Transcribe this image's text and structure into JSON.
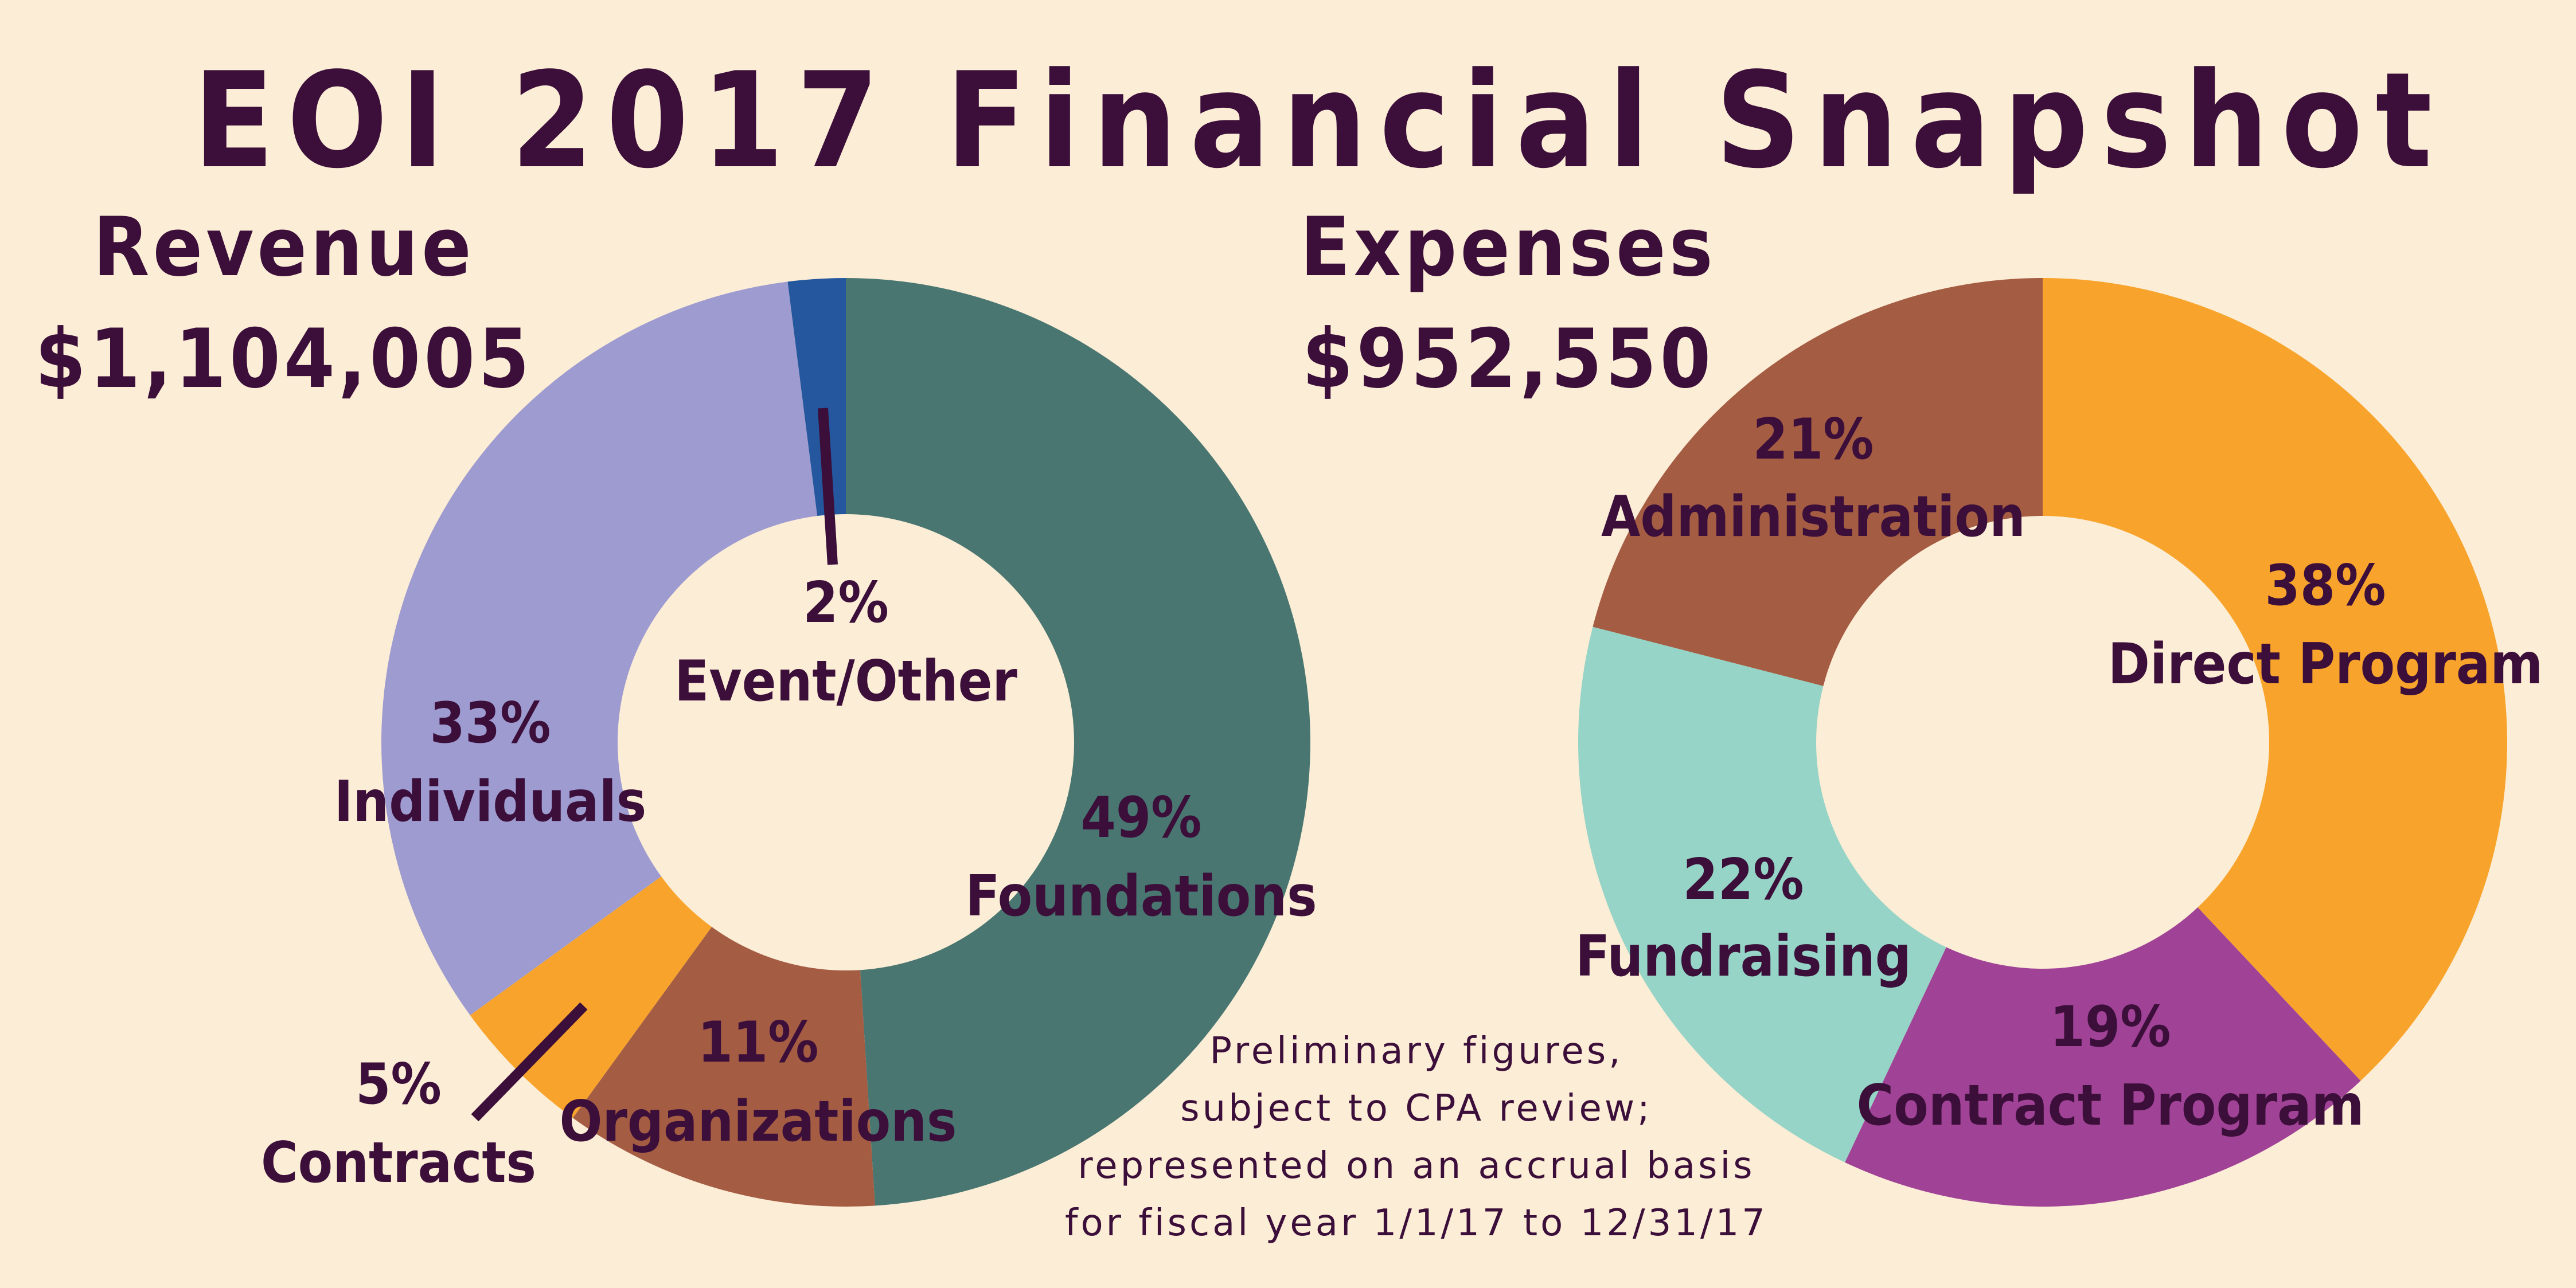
{
  "colors": {
    "background": "#fcedd6",
    "text": "#3b0f3a",
    "hole": "#fcedd6"
  },
  "title": "EOI 2017 Financial Snapshot",
  "note_lines": [
    "Preliminary figures,",
    "subject to CPA review;",
    "represented on an accrual basis",
    "for fiscal year 1/1/17 to 12/31/17"
  ],
  "chart_data": [
    {
      "type": "pie",
      "donut": true,
      "title": "Revenue",
      "subtitle": "$1,104,005",
      "slices": [
        {
          "label": "Foundations",
          "value": 49,
          "value_label": "49%",
          "color": "#497670"
        },
        {
          "label": "Organizations",
          "value": 11,
          "value_label": "11%",
          "color": "#a45c43"
        },
        {
          "label": "Contracts",
          "value": 5,
          "value_label": "5%",
          "color": "#f8a42c"
        },
        {
          "label": "Individuals",
          "value": 33,
          "value_label": "33%",
          "color": "#9e9bd0"
        },
        {
          "label": "Event/Other",
          "value": 2,
          "value_label": "2%",
          "color": "#25579e"
        }
      ]
    },
    {
      "type": "pie",
      "donut": true,
      "title": "Expenses",
      "subtitle": "$952,550",
      "slices": [
        {
          "label": "Direct Program",
          "value": 38,
          "value_label": "38%",
          "color": "#f8a42c"
        },
        {
          "label": "Contract Program",
          "value": 19,
          "value_label": "19%",
          "color": "#a04296"
        },
        {
          "label": "Fundraising",
          "value": 22,
          "value_label": "22%",
          "color": "#95d4c6"
        },
        {
          "label": "Administration",
          "value": 21,
          "value_label": "21%",
          "color": "#a45c43"
        }
      ]
    }
  ]
}
